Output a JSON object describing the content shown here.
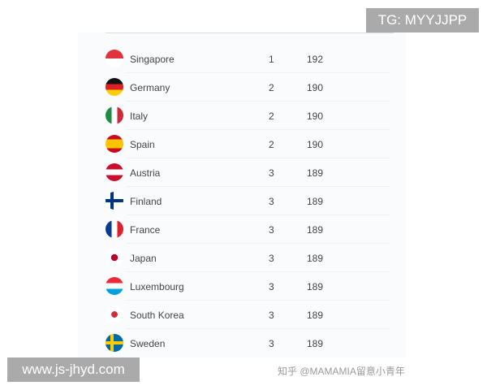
{
  "rows": [
    {
      "country": "Singapore",
      "rank": "1",
      "score": "192",
      "flag": "singapore"
    },
    {
      "country": "Germany",
      "rank": "2",
      "score": "190",
      "flag": "germany"
    },
    {
      "country": "Italy",
      "rank": "2",
      "score": "190",
      "flag": "italy"
    },
    {
      "country": "Spain",
      "rank": "2",
      "score": "190",
      "flag": "spain"
    },
    {
      "country": "Austria",
      "rank": "3",
      "score": "189",
      "flag": "austria"
    },
    {
      "country": "Finland",
      "rank": "3",
      "score": "189",
      "flag": "finland"
    },
    {
      "country": "France",
      "rank": "3",
      "score": "189",
      "flag": "france"
    },
    {
      "country": "Japan",
      "rank": "3",
      "score": "189",
      "flag": "japan"
    },
    {
      "country": "Luxembourg",
      "rank": "3",
      "score": "189",
      "flag": "luxembourg"
    },
    {
      "country": "South Korea",
      "rank": "3",
      "score": "189",
      "flag": "south-korea"
    },
    {
      "country": "Sweden",
      "rank": "3",
      "score": "189",
      "flag": "sweden"
    }
  ],
  "overlays": {
    "tg": "TG: MYYJJPP",
    "website": "www.js-jhyd.com",
    "watermark": "知乎 @MAMAMIA留意小青年"
  }
}
